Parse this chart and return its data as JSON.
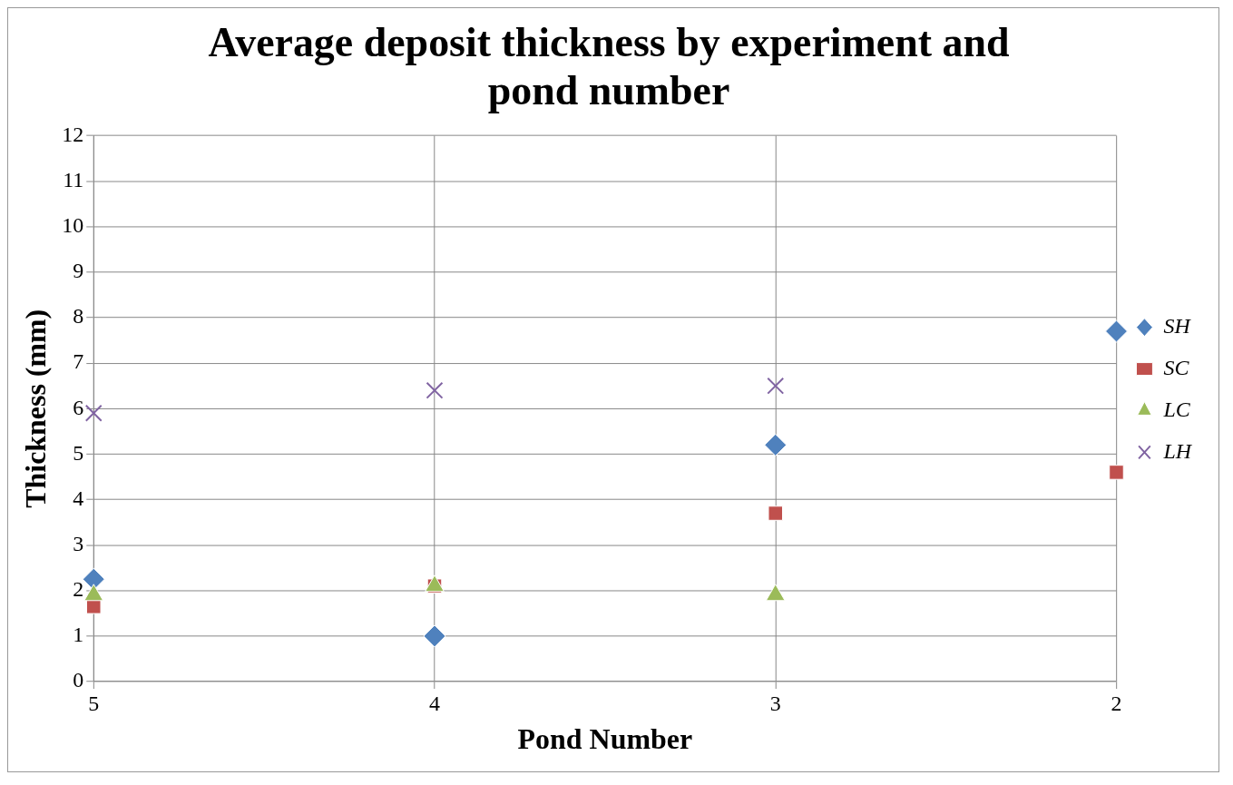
{
  "chart_data": {
    "type": "scatter",
    "title": "Average deposit thickness by experiment and pond number",
    "xlabel": "Pond Number",
    "ylabel": "Thickness (mm)",
    "xlim": [
      5,
      2
    ],
    "xticks": [
      5,
      4,
      3,
      2
    ],
    "ylim": [
      0,
      12
    ],
    "yticks": [
      0,
      1,
      2,
      3,
      4,
      5,
      6,
      7,
      8,
      9,
      10,
      11,
      12
    ],
    "grid": true,
    "legend": "right",
    "x": [
      5,
      4,
      3,
      2
    ],
    "series": [
      {
        "name": "SH",
        "color": "#4f81bd",
        "marker": "diamond",
        "values": [
          2.25,
          1.0,
          5.2,
          7.7
        ]
      },
      {
        "name": "SC",
        "color": "#c0504d",
        "marker": "square",
        "values": [
          1.65,
          2.1,
          3.7,
          4.6
        ]
      },
      {
        "name": "LC",
        "color": "#9bbb59",
        "marker": "triangle",
        "values": [
          1.9,
          2.1,
          1.9,
          null
        ]
      },
      {
        "name": "LH",
        "color": "#8064a2",
        "marker": "cross",
        "values": [
          5.9,
          6.4,
          6.5,
          null
        ]
      }
    ]
  }
}
